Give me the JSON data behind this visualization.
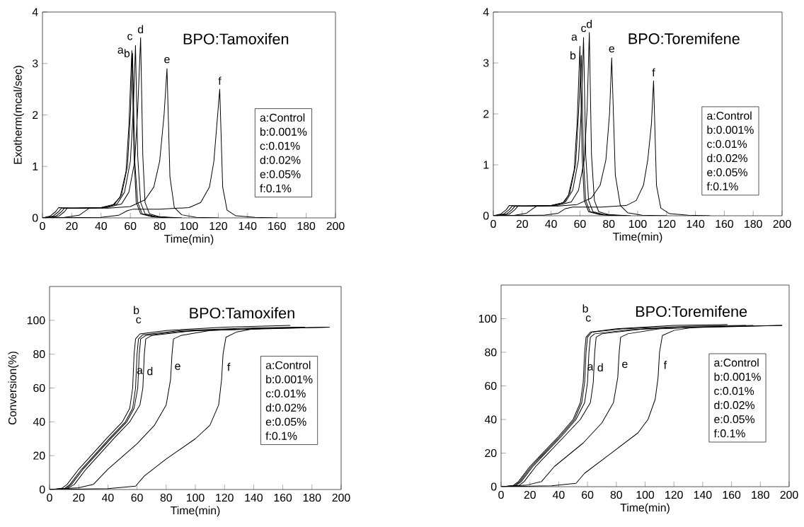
{
  "chart_data": [
    {
      "type": "line",
      "title": "BPO:Tamoxifen",
      "xlabel": "Time(min)",
      "ylabel": "Exotherm(mcal/sec)",
      "xlim": [
        0,
        200
      ],
      "ylim": [
        0,
        4
      ],
      "xticks": [
        0,
        20,
        40,
        60,
        80,
        100,
        120,
        140,
        160,
        180,
        200
      ],
      "yticks": [
        0,
        1,
        2,
        3,
        4
      ],
      "series": [
        {
          "name": "a",
          "color": "#000000",
          "x": [
            0,
            5,
            9,
            11,
            20,
            40,
            48,
            53,
            57,
            59,
            61,
            62.5,
            64,
            67,
            75,
            90
          ],
          "values": [
            0,
            0.03,
            0.12,
            0.2,
            0.19,
            0.2,
            0.25,
            0.4,
            0.9,
            1.8,
            3.25,
            1.2,
            0.3,
            0.08,
            0.02,
            0
          ]
        },
        {
          "name": "b",
          "color": "#000000",
          "x": [
            0,
            7,
            11,
            13,
            22,
            40,
            49,
            54,
            58,
            60,
            61.5,
            63,
            65,
            68,
            76,
            90
          ],
          "values": [
            0,
            0.03,
            0.12,
            0.19,
            0.19,
            0.2,
            0.26,
            0.45,
            1.0,
            2.0,
            3.2,
            1.1,
            0.3,
            0.08,
            0.02,
            0
          ]
        },
        {
          "name": "c",
          "color": "#000000",
          "x": [
            0,
            9,
            13,
            15,
            24,
            42,
            51,
            56,
            60,
            62,
            63.5,
            65,
            67,
            70,
            78,
            92
          ],
          "values": [
            0,
            0.03,
            0.12,
            0.19,
            0.19,
            0.2,
            0.27,
            0.5,
            1.1,
            2.1,
            3.35,
            1.2,
            0.3,
            0.08,
            0.02,
            0
          ]
        },
        {
          "name": "d",
          "color": "#000000",
          "x": [
            0,
            11,
            15,
            17,
            26,
            44,
            54,
            59,
            63,
            65,
            67,
            68.5,
            70,
            73,
            80,
            95
          ],
          "values": [
            0,
            0.03,
            0.12,
            0.19,
            0.19,
            0.2,
            0.27,
            0.5,
            1.1,
            2.1,
            3.5,
            1.2,
            0.3,
            0.08,
            0.02,
            0
          ]
        },
        {
          "name": "e",
          "color": "#000000",
          "x": [
            0,
            15,
            25,
            30,
            32,
            45,
            60,
            70,
            76,
            80,
            83,
            85,
            87,
            90,
            95,
            105,
            120
          ],
          "values": [
            0,
            0.01,
            0.05,
            0.15,
            0.19,
            0.19,
            0.22,
            0.35,
            0.6,
            1.1,
            2.0,
            2.9,
            0.8,
            0.2,
            0.06,
            0.01,
            0
          ]
        },
        {
          "name": "f",
          "color": "#000000",
          "x": [
            0,
            40,
            52,
            58,
            62,
            80,
            100,
            108,
            114,
            117,
            119,
            121,
            123,
            126,
            132,
            145,
            160
          ],
          "values": [
            0,
            0.01,
            0.05,
            0.14,
            0.17,
            0.17,
            0.2,
            0.3,
            0.6,
            1.1,
            1.8,
            2.5,
            0.6,
            0.15,
            0.04,
            0.01,
            0
          ]
        }
      ],
      "annotations": [
        "a:Control",
        "b:0.001%",
        "c:0.01%",
        "d:0.02%",
        "e:0.05%",
        "f:0.1%"
      ]
    },
    {
      "type": "line",
      "title": "BPO:Toremifene",
      "xlabel": "Time(min)",
      "xlim": [
        0,
        200
      ],
      "ylim": [
        0,
        4
      ],
      "xticks": [
        0,
        20,
        40,
        60,
        80,
        100,
        120,
        140,
        160,
        180,
        200
      ],
      "yticks": [
        0,
        1,
        2,
        3,
        4
      ],
      "series": [
        {
          "name": "a",
          "color": "#000000",
          "x": [
            0,
            5,
            9,
            11,
            20,
            40,
            48,
            52,
            56,
            58,
            60,
            61.5,
            63,
            66,
            74,
            90
          ],
          "values": [
            0,
            0.03,
            0.12,
            0.2,
            0.19,
            0.2,
            0.25,
            0.4,
            0.9,
            1.8,
            3.33,
            1.2,
            0.3,
            0.08,
            0.02,
            0
          ]
        },
        {
          "name": "b",
          "color": "#000000",
          "x": [
            0,
            7,
            11,
            13,
            22,
            40,
            49,
            53,
            57,
            59,
            61,
            62.5,
            64,
            67,
            75,
            90
          ],
          "values": [
            0,
            0.03,
            0.12,
            0.19,
            0.19,
            0.2,
            0.26,
            0.45,
            1.0,
            2.0,
            3.15,
            1.1,
            0.3,
            0.08,
            0.02,
            0
          ]
        },
        {
          "name": "c",
          "color": "#000000",
          "x": [
            0,
            9,
            13,
            15,
            24,
            42,
            50,
            55,
            59,
            61,
            62.5,
            64,
            66,
            69,
            77,
            92
          ],
          "values": [
            0,
            0.03,
            0.12,
            0.19,
            0.19,
            0.2,
            0.27,
            0.5,
            1.1,
            2.1,
            3.5,
            1.2,
            0.3,
            0.08,
            0.02,
            0
          ]
        },
        {
          "name": "d",
          "color": "#000000",
          "x": [
            0,
            11,
            15,
            17,
            26,
            44,
            54,
            59,
            63,
            65,
            66.5,
            68,
            70,
            73,
            80,
            95
          ],
          "values": [
            0,
            0.03,
            0.12,
            0.19,
            0.19,
            0.2,
            0.27,
            0.5,
            1.1,
            2.1,
            3.6,
            1.2,
            0.3,
            0.08,
            0.02,
            0
          ]
        },
        {
          "name": "e",
          "color": "#000000",
          "x": [
            0,
            15,
            23,
            28,
            30,
            45,
            58,
            68,
            74,
            78,
            80.5,
            82,
            84.5,
            88,
            93,
            103,
            120
          ],
          "values": [
            0,
            0.01,
            0.05,
            0.15,
            0.19,
            0.19,
            0.22,
            0.35,
            0.6,
            1.1,
            2.0,
            3.1,
            0.8,
            0.2,
            0.06,
            0.01,
            0
          ]
        },
        {
          "name": "f",
          "color": "#000000",
          "x": [
            0,
            35,
            45,
            50,
            55,
            75,
            92,
            99,
            104,
            107,
            109.5,
            111,
            113,
            116,
            122,
            135,
            150
          ],
          "values": [
            0,
            0.01,
            0.05,
            0.14,
            0.17,
            0.17,
            0.2,
            0.3,
            0.6,
            1.1,
            1.8,
            2.65,
            0.6,
            0.15,
            0.04,
            0.01,
            0
          ]
        }
      ],
      "annotations": [
        "a:Control",
        "b:0.001%",
        "c:0.01%",
        "d:0.02%",
        "e:0.05%",
        "f:0.1%"
      ]
    },
    {
      "type": "line",
      "title": "BPO:Tamoxifen",
      "xlabel": "Time(min)",
      "ylabel": "Conversion(%)",
      "xlim": [
        0,
        200
      ],
      "ylim": [
        0,
        120
      ],
      "xticks": [
        0,
        20,
        40,
        60,
        80,
        100,
        120,
        140,
        160,
        180,
        200
      ],
      "yticks": [
        0,
        20,
        40,
        60,
        80,
        100
      ],
      "series": [
        {
          "name": "a",
          "color": "#000000",
          "x": [
            0,
            8,
            12,
            20,
            40,
            50,
            55,
            57,
            58,
            59,
            62,
            80,
            120,
            165
          ],
          "values": [
            0,
            0.5,
            3,
            12,
            31,
            40,
            48,
            60,
            80,
            89,
            92,
            94,
            96,
            97
          ]
        },
        {
          "name": "b",
          "color": "#000000",
          "x": [
            0,
            10,
            14,
            22,
            42,
            52,
            57,
            59,
            60,
            61,
            64,
            90,
            140,
            175
          ],
          "values": [
            0,
            0.5,
            3,
            12,
            31,
            40,
            48,
            60,
            80,
            89,
            91.5,
            94,
            95.5,
            96
          ]
        },
        {
          "name": "c",
          "color": "#000000",
          "x": [
            0,
            11,
            15,
            23,
            43,
            53,
            58,
            60.5,
            61.5,
            62.5,
            66,
            90,
            120,
            145
          ],
          "values": [
            0,
            0.5,
            3,
            12,
            31,
            40,
            48,
            60,
            80,
            89,
            91,
            93.5,
            94.5,
            95
          ]
        },
        {
          "name": "d",
          "color": "#000000",
          "x": [
            0,
            12,
            17,
            25,
            45,
            55,
            62,
            64,
            65,
            66,
            70,
            100,
            150,
            192
          ],
          "values": [
            0,
            0.5,
            3,
            12,
            31,
            40,
            50,
            60,
            80,
            89,
            91,
            94,
            95,
            96
          ]
        },
        {
          "name": "e",
          "color": "#000000",
          "x": [
            0,
            20,
            30,
            40,
            60,
            72,
            80,
            83,
            84,
            85,
            90,
            110,
            140,
            175
          ],
          "values": [
            0,
            1,
            3,
            12,
            27,
            38,
            50,
            65,
            80,
            89,
            91,
            94,
            95,
            96
          ]
        },
        {
          "name": "f",
          "color": "#000000",
          "x": [
            0,
            40,
            59,
            65,
            80,
            100,
            110,
            116,
            118,
            119,
            121,
            128,
            140,
            192
          ],
          "values": [
            0,
            0.5,
            2,
            8,
            18,
            30,
            38,
            50,
            65,
            80,
            90,
            93,
            95,
            96
          ]
        }
      ],
      "annotations": [
        "a:Control",
        "b:0.001%",
        "c:0.01%",
        "d:0.02%",
        "e:0.05%",
        "f:0.1%"
      ]
    },
    {
      "type": "line",
      "title": "BPO:Toremifene",
      "xlabel": "Time(min)",
      "xlim": [
        0,
        200
      ],
      "ylim": [
        0,
        120
      ],
      "xticks": [
        0,
        20,
        40,
        60,
        80,
        100,
        120,
        140,
        160,
        180,
        200
      ],
      "yticks": [
        0,
        20,
        40,
        60,
        80,
        100
      ],
      "series": [
        {
          "name": "a",
          "color": "#000000",
          "x": [
            0,
            8,
            12,
            20,
            40,
            50,
            55,
            57,
            58,
            59,
            62,
            80,
            120,
            157
          ],
          "values": [
            0,
            0.5,
            3,
            12,
            30,
            40,
            50,
            62,
            80,
            89,
            92,
            94,
            96,
            96.5
          ]
        },
        {
          "name": "b",
          "color": "#000000",
          "x": [
            0,
            9,
            13,
            21,
            41,
            51,
            56,
            58,
            59,
            60,
            63,
            85,
            130,
            170
          ],
          "values": [
            0,
            0.5,
            3,
            12,
            30,
            40,
            50,
            62,
            80,
            89,
            92,
            94,
            95.5,
            96
          ]
        },
        {
          "name": "c",
          "color": "#000000",
          "x": [
            0,
            10,
            14,
            22,
            42,
            52,
            58,
            60,
            61,
            62,
            65,
            90,
            120,
            145
          ],
          "values": [
            0,
            0.5,
            3,
            12,
            30,
            40,
            50,
            62,
            80,
            89,
            91,
            93.5,
            94.5,
            95
          ]
        },
        {
          "name": "d",
          "color": "#000000",
          "x": [
            0,
            12,
            16,
            24,
            44,
            55,
            62,
            64,
            65,
            66,
            70,
            100,
            150,
            195
          ],
          "values": [
            0,
            0.5,
            3,
            12,
            30,
            40,
            50,
            62,
            80,
            89,
            91,
            94,
            95,
            96
          ]
        },
        {
          "name": "e",
          "color": "#000000",
          "x": [
            0,
            18,
            28,
            37,
            57,
            70,
            78,
            81,
            82,
            83,
            88,
            110,
            140,
            175
          ],
          "values": [
            0,
            1,
            3,
            12,
            26,
            38,
            50,
            65,
            80,
            89,
            91,
            94,
            95,
            96
          ]
        },
        {
          "name": "f",
          "color": "#000000",
          "x": [
            0,
            35,
            52,
            58,
            75,
            95,
            102,
            107,
            109,
            110,
            112,
            120,
            135,
            195
          ],
          "values": [
            0,
            0.5,
            2,
            8,
            19,
            32,
            40,
            52,
            65,
            80,
            90,
            93,
            95,
            96
          ]
        }
      ],
      "annotations": [
        "a:Control",
        "b:0.001%",
        "c:0.01%",
        "d:0.02%",
        "e:0.05%",
        "f:0.1%"
      ]
    }
  ]
}
